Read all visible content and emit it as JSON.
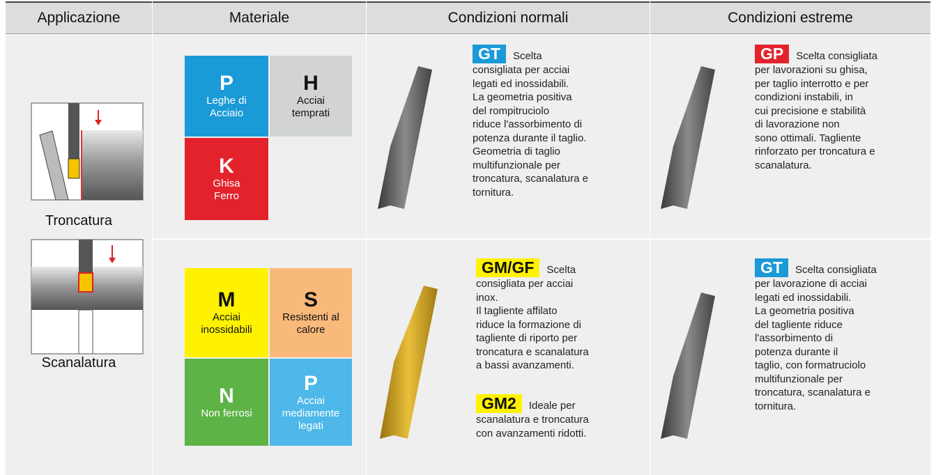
{
  "header": [
    "Applicazione",
    "Materiale",
    "Condizioni normali",
    "Condizioni estreme"
  ],
  "applications": [
    "Troncatura",
    "Scanalatura"
  ],
  "rows": [
    {
      "materials": [
        {
          "code": "P",
          "lines": [
            "Leghe di",
            "Acciaio"
          ]
        },
        {
          "code": "H",
          "lines": [
            "Acciai",
            "temprati"
          ]
        },
        {
          "code": "K",
          "lines": [
            "Ghisa",
            "Ferro"
          ]
        }
      ],
      "normal": [
        {
          "code": "GT",
          "lines": [
            "Scelta",
            "consigliata per acciai",
            "legati ed inossidabili.",
            "La geometria positiva",
            "del rompitruciolo",
            "riduce l'assorbimento di",
            "potenza durante il taglio.",
            "Geometria di taglio",
            "multifunzionale per",
            "troncatura, scanalatura e",
            "tornitura."
          ]
        }
      ],
      "extreme": [
        {
          "code": "GP",
          "lines": [
            "Scelta consigliata",
            "per lavorazioni su ghisa,",
            "per taglio interrotto e per",
            "condizioni instabili, in",
            "cui precisione e stabilità",
            "di lavorazione non",
            "sono ottimali. Tagliente",
            "rinforzato per troncatura e",
            "scanalatura."
          ]
        }
      ]
    },
    {
      "materials": [
        {
          "code": "M",
          "lines": [
            "Acciai",
            "inossidabili"
          ]
        },
        {
          "code": "S",
          "lines": [
            "Resistenti al",
            "calore"
          ]
        },
        {
          "code": "N",
          "lines": [
            "Non ferrosi"
          ]
        },
        {
          "code": "P",
          "lines": [
            "Acciai",
            "mediamente",
            "legati"
          ]
        }
      ],
      "normal": [
        {
          "code": "GM/GF",
          "lines": [
            "Scelta",
            "consigliata per acciai",
            "inox.",
            "Il tagliente affilato",
            "riduce la formazione di",
            "tagliente di riporto per",
            "troncatura e scanalatura",
            "a bassi avanzamenti."
          ]
        },
        {
          "code": "GM2",
          "lines": [
            "Ideale per",
            "scanalatura e troncatura",
            "con avanzamenti ridotti."
          ]
        }
      ],
      "extreme": [
        {
          "code": "GT",
          "lines": [
            "Scelta consigliata",
            "per lavorazione di acciai",
            "legati ed inossidabili.",
            "La geometria positiva",
            "del tagliente riduce",
            "l'assorbimento di",
            "potenza durante il",
            "taglio, con formatruciolo",
            "multifunzionale per",
            "troncatura, scanalatura e",
            "tornitura."
          ]
        }
      ]
    }
  ]
}
